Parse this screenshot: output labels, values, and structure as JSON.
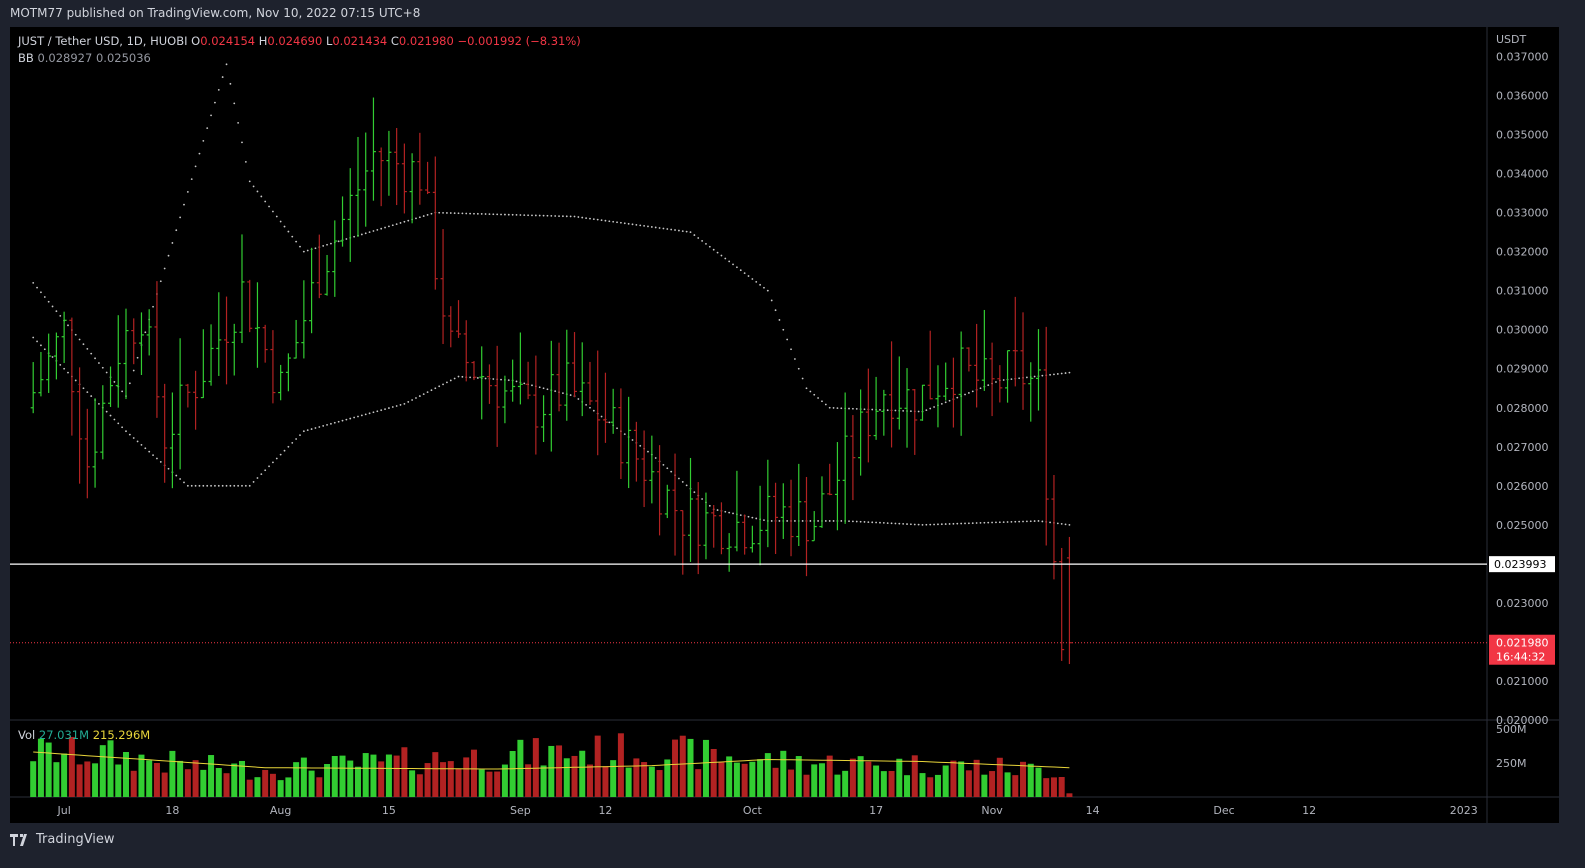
{
  "header": {
    "published_text": "MOTM77 published on TradingView.com, Nov 10, 2022 07:15 UTC+8"
  },
  "legend": {
    "symbol": "JUST / Tether USD, 1D, HUOBI",
    "o_label": "O",
    "o": "0.024154",
    "h_label": "H",
    "h": "0.024690",
    "l_label": "L",
    "l": "0.021434",
    "c_label": "C",
    "c": "0.021980",
    "change": "−0.001992 (−8.31%)"
  },
  "bb_legend": {
    "label": "BB",
    "v1": "0.028927",
    "v2": "0.025036"
  },
  "vol_legend": {
    "label": "Vol",
    "v1": "27.031M",
    "v2": "215.296M"
  },
  "footer": {
    "brand": "TradingView"
  },
  "colors": {
    "up": "#32cd32",
    "down": "#b22222",
    "last_price": "#f23645",
    "bb": "#c8c8c8",
    "vol_ma": "#e8d53a"
  },
  "chart_data": {
    "type": "candlestick",
    "currency_label": "USDT",
    "ylim": [
      0.02,
      0.0375
    ],
    "y_ticks": [
      "0.020000",
      "0.021000",
      "0.022000",
      "0.023000",
      "0.024000",
      "0.025000",
      "0.026000",
      "0.027000",
      "0.028000",
      "0.029000",
      "0.030000",
      "0.031000",
      "0.032000",
      "0.033000",
      "0.034000",
      "0.035000",
      "0.036000",
      "0.037000"
    ],
    "y_ticks_shown": [
      "0.020000",
      "0.021000",
      "0.023000",
      "0.025000",
      "0.026000",
      "0.027000",
      "0.028000",
      "0.029000",
      "0.030000",
      "0.031000",
      "0.032000",
      "0.033000",
      "0.034000",
      "0.035000",
      "0.036000",
      "0.037000"
    ],
    "x_labels": [
      {
        "label": "Jul",
        "day": 4
      },
      {
        "label": "18",
        "day": 18
      },
      {
        "label": "Aug",
        "day": 32
      },
      {
        "label": "15",
        "day": 46
      },
      {
        "label": "Sep",
        "day": 63
      },
      {
        "label": "12",
        "day": 74
      },
      {
        "label": "Oct",
        "day": 93
      },
      {
        "label": "17",
        "day": 109
      },
      {
        "label": "Nov",
        "day": 124
      },
      {
        "label": "14",
        "day": 137
      },
      {
        "label": "Dec",
        "day": 154
      },
      {
        "label": "12",
        "day": 165
      },
      {
        "label": "2023",
        "day": 185
      }
    ],
    "x_range_days": [
      -3,
      188
    ],
    "last_day": 134,
    "horizontal_line": {
      "value": 0.023993,
      "label": "0.023993"
    },
    "last_price": {
      "value": 0.02198,
      "label": "0.021980",
      "countdown": "16:44:32"
    },
    "price_keypoints": [
      [
        0,
        0.028
      ],
      [
        5,
        0.03
      ],
      [
        8,
        0.0266
      ],
      [
        12,
        0.0295
      ],
      [
        15,
        0.0305
      ],
      [
        18,
        0.0273
      ],
      [
        23,
        0.029
      ],
      [
        28,
        0.031
      ],
      [
        33,
        0.0285
      ],
      [
        38,
        0.0315
      ],
      [
        45,
        0.0345
      ],
      [
        51,
        0.034
      ],
      [
        55,
        0.0295
      ],
      [
        60,
        0.0287
      ],
      [
        65,
        0.0279
      ],
      [
        70,
        0.0285
      ],
      [
        75,
        0.0277
      ],
      [
        80,
        0.0265
      ],
      [
        85,
        0.0252
      ],
      [
        93,
        0.025
      ],
      [
        98,
        0.0253
      ],
      [
        102,
        0.0251
      ],
      [
        107,
        0.027
      ],
      [
        111,
        0.0285
      ],
      [
        115,
        0.0282
      ],
      [
        120,
        0.029
      ],
      [
        125,
        0.0285
      ],
      [
        128,
        0.029
      ],
      [
        131,
        0.0285
      ],
      [
        133,
        0.0241
      ],
      [
        134,
        0.022
      ]
    ],
    "last_candle": {
      "open": 0.024154,
      "high": 0.02469,
      "low": 0.021434,
      "close": 0.02198
    },
    "bb_upper_keypoints": [
      [
        0,
        0.0312
      ],
      [
        12,
        0.0283
      ],
      [
        25,
        0.0368
      ],
      [
        28,
        0.0338
      ],
      [
        35,
        0.032
      ],
      [
        52,
        0.033
      ],
      [
        70,
        0.0329
      ],
      [
        85,
        0.0325
      ],
      [
        95,
        0.031
      ],
      [
        100,
        0.0285
      ],
      [
        103,
        0.028
      ],
      [
        115,
        0.0279
      ],
      [
        125,
        0.0287
      ],
      [
        134,
        0.0289
      ]
    ],
    "bb_lower_keypoints": [
      [
        0,
        0.0298
      ],
      [
        12,
        0.0274
      ],
      [
        20,
        0.026
      ],
      [
        28,
        0.026
      ],
      [
        35,
        0.0274
      ],
      [
        48,
        0.0281
      ],
      [
        55,
        0.0288
      ],
      [
        62,
        0.0287
      ],
      [
        70,
        0.0283
      ],
      [
        80,
        0.0268
      ],
      [
        88,
        0.0254
      ],
      [
        95,
        0.0251
      ],
      [
        105,
        0.0251
      ],
      [
        115,
        0.025
      ],
      [
        130,
        0.0251
      ],
      [
        134,
        0.025
      ]
    ],
    "volume": {
      "ylim": [
        0,
        550
      ],
      "y_ticks": [
        "250M",
        "500M"
      ],
      "ma_value": "215.296M",
      "last_value": "27.031M",
      "keypoints": [
        [
          0,
          330
        ],
        [
          10,
          310
        ],
        [
          20,
          230
        ],
        [
          30,
          200
        ],
        [
          40,
          230
        ],
        [
          50,
          270
        ],
        [
          60,
          300
        ],
        [
          70,
          330
        ],
        [
          75,
          340
        ],
        [
          85,
          320
        ],
        [
          90,
          290
        ],
        [
          100,
          250
        ],
        [
          110,
          240
        ],
        [
          120,
          230
        ],
        [
          130,
          200
        ],
        [
          133,
          200
        ],
        [
          134,
          27
        ]
      ],
      "ma_keypoints": [
        [
          0,
          330
        ],
        [
          30,
          215
        ],
        [
          60,
          205
        ],
        [
          80,
          230
        ],
        [
          95,
          275
        ],
        [
          115,
          260
        ],
        [
          134,
          215
        ]
      ]
    }
  }
}
